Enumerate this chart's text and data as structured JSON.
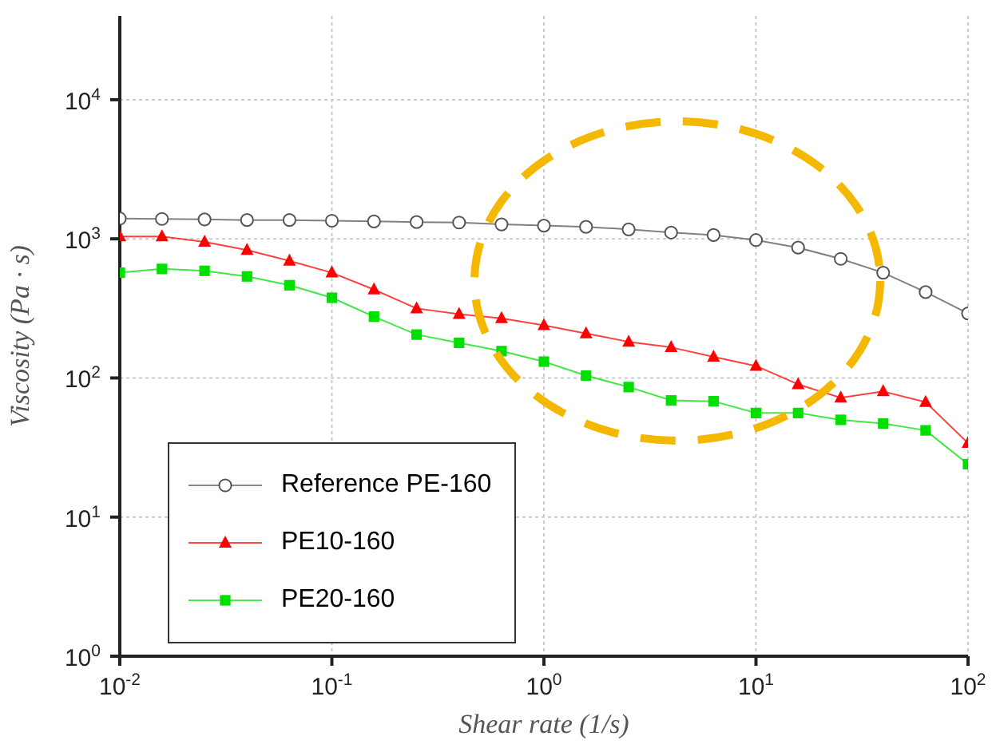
{
  "chart_data": {
    "type": "line",
    "xlabel": "Shear rate  (1/s)",
    "ylabel": "Viscosity  (Pa · s)",
    "x": [
      0.01,
      0.0158,
      0.0251,
      0.0398,
      0.0631,
      0.1,
      0.158,
      0.251,
      0.398,
      0.631,
      1,
      1.58,
      2.51,
      3.98,
      6.31,
      10,
      15.8,
      25.1,
      39.8,
      63.1,
      100
    ],
    "series": [
      {
        "name": "Reference PE-160",
        "color": "#555555",
        "marker": "circle",
        "values": [
          1400,
          1390,
          1380,
          1365,
          1365,
          1350,
          1335,
          1320,
          1310,
          1270,
          1245,
          1220,
          1170,
          1110,
          1065,
          980,
          865,
          718,
          571,
          414,
          291
        ]
      },
      {
        "name": "PE10-160",
        "color": "#ff0000",
        "marker": "triangle",
        "values": [
          1040,
          1040,
          950,
          830,
          695,
          571,
          432,
          316,
          288,
          268,
          239,
          209,
          182,
          166,
          142,
          122,
          90,
          72,
          80,
          67,
          34
        ]
      },
      {
        "name": "PE20-160",
        "color": "#00e000",
        "marker": "square",
        "values": [
          571,
          608,
          589,
          537,
          464,
          377,
          276,
          205,
          179,
          156,
          131,
          104,
          86,
          69,
          68,
          56,
          56,
          50,
          47,
          42,
          24
        ]
      }
    ],
    "log": "xy",
    "xlim": [
      0.01,
      100
    ],
    "ylim": [
      1,
      40000
    ],
    "xticks": [
      {
        "value": 0.01,
        "label": "10$^{-2}$"
      },
      {
        "value": 0.1,
        "label": "10$^{-1}$"
      },
      {
        "value": 1,
        "label": "10$^{0}$"
      },
      {
        "value": 10,
        "label": "10$^{1}$"
      },
      {
        "value": 100,
        "label": "10$^{2}$"
      }
    ],
    "yticks": [
      {
        "value": 1,
        "label": "10$^{0}$"
      },
      {
        "value": 10,
        "label": "10$^{1}$"
      },
      {
        "value": 100,
        "label": "10$^{2}$"
      },
      {
        "value": 1000,
        "label": "10$^{3}$"
      },
      {
        "value": 10000,
        "label": "10$^{4}$"
      }
    ],
    "grid": true,
    "legend": "bottom left",
    "line_style": "solid"
  }
}
